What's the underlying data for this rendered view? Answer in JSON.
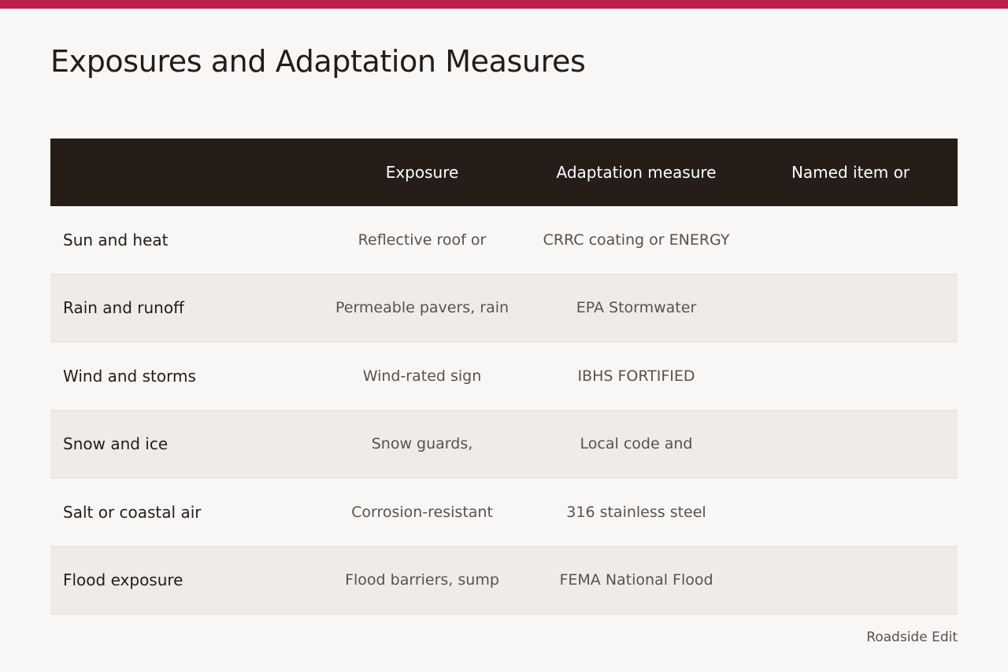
{
  "page": {
    "title": "Exposures and Adaptation Measures",
    "brand": "Roadside Edit",
    "accent_color": "#be1e4a"
  },
  "table": {
    "headers": [
      "",
      "Exposure",
      "Adaptation measure",
      "Named item or"
    ],
    "rows": [
      [
        "Sun and heat",
        "Reflective roof or",
        "CRRC coating or ENERGY",
        ""
      ],
      [
        "Rain and runoff",
        "Permeable pavers, rain",
        "EPA Stormwater",
        ""
      ],
      [
        "Wind and storms",
        "Wind-rated sign",
        "IBHS FORTIFIED",
        ""
      ],
      [
        "Snow and ice",
        "Snow guards,",
        "Local code and",
        ""
      ],
      [
        "Salt or coastal air",
        "Corrosion-resistant",
        "316 stainless steel",
        ""
      ],
      [
        "Flood exposure",
        "Flood barriers, sump",
        "FEMA National Flood",
        ""
      ]
    ]
  }
}
